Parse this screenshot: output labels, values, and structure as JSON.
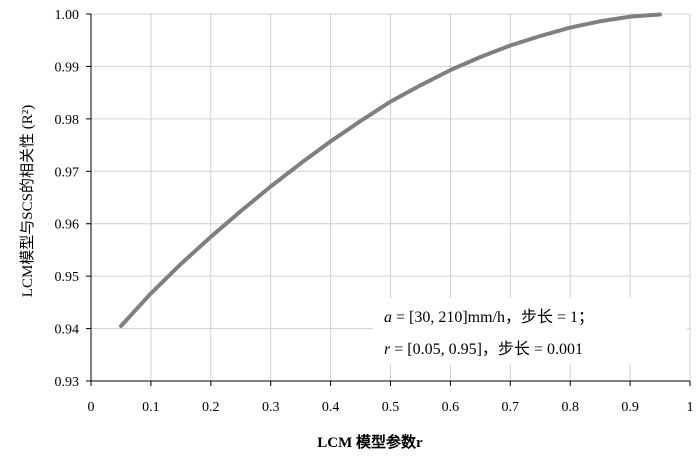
{
  "chart_data": {
    "type": "line",
    "title": "",
    "xlabel": "LCM 模型参数r",
    "ylabel": "LCM模型与SCS的相关性 (R²)",
    "xlim": [
      0,
      1
    ],
    "ylim": [
      0.93,
      1.0
    ],
    "x_ticks": [
      "0",
      "0.1",
      "0.2",
      "0.3",
      "0.4",
      "0.5",
      "0.6",
      "0.7",
      "0.8",
      "0.9",
      "1"
    ],
    "y_ticks": [
      "0.93",
      "0.94",
      "0.95",
      "0.96",
      "0.97",
      "0.98",
      "0.99",
      "1.00"
    ],
    "grid": true,
    "line_color": "#7f7f7f",
    "series": [
      {
        "x": [
          0.05,
          0.1,
          0.15,
          0.2,
          0.25,
          0.3,
          0.35,
          0.4,
          0.45,
          0.5,
          0.55,
          0.6,
          0.65,
          0.7,
          0.75,
          0.8,
          0.85,
          0.9,
          0.95
        ],
        "values": [
          0.9405,
          0.9467,
          0.9523,
          0.9575,
          0.9624,
          0.9671,
          0.9715,
          0.9757,
          0.9796,
          0.9833,
          0.9864,
          0.9893,
          0.9918,
          0.994,
          0.9958,
          0.9974,
          0.9986,
          0.9995,
          0.9999
        ]
      }
    ],
    "annotation": {
      "line1_var": "a",
      "line1_rest": " = [30, 210]mm/h，步长 = 1；",
      "line2_var": "r",
      "line2_rest": " = [0.05, 0.95]，步长 = 0.001"
    }
  }
}
